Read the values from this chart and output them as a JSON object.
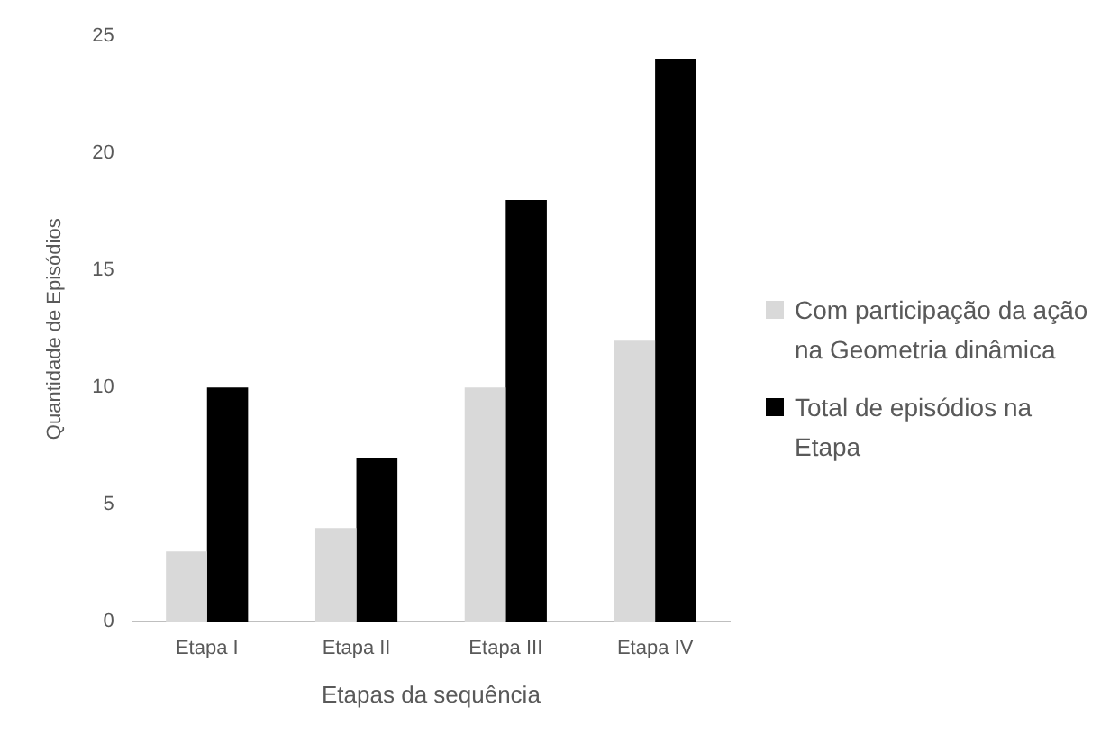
{
  "chart_data": {
    "type": "bar",
    "xlabel": "Etapas da sequência",
    "ylabel": "Quantidade de Episódios",
    "categories": [
      "Etapa I",
      "Etapa II",
      "Etapa III",
      "Etapa IV"
    ],
    "series": [
      {
        "name": "Com participação da ação na Geometria dinâmica",
        "color": "#d9d9d9",
        "values": [
          3,
          4,
          10,
          12
        ]
      },
      {
        "name": "Total de episódios na Etapa",
        "color": "#000000",
        "values": [
          10,
          7,
          18,
          24
        ]
      }
    ],
    "ylim": [
      0,
      25
    ],
    "yticks": [
      0,
      5,
      10,
      15,
      20,
      25
    ],
    "grid": false,
    "legend": "right"
  }
}
